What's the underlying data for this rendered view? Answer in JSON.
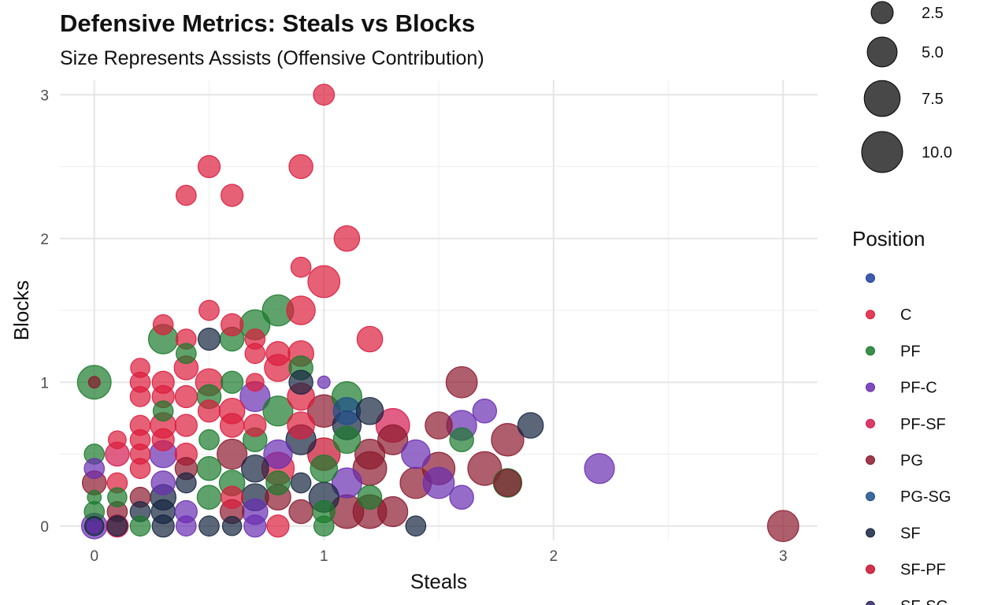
{
  "chart_data": {
    "type": "scatter",
    "title": "Defensive Metrics: Steals vs Blocks",
    "subtitle": "Size Represents Assists (Offensive Contribution)",
    "xlabel": "Steals",
    "ylabel": "Blocks",
    "xlim": [
      -0.15,
      3.15
    ],
    "ylim": [
      -0.1,
      3.1
    ],
    "x_ticks": [
      0,
      1,
      2,
      3
    ],
    "x_tick_labels": [
      "0",
      "1",
      "2",
      "3"
    ],
    "y_ticks": [
      0,
      1,
      2,
      3
    ],
    "y_tick_labels": [
      "0",
      "1",
      "2",
      "3"
    ],
    "grid": true,
    "point_alpha": 0.7,
    "size_legend": {
      "entries": [
        {
          "label": "2.5",
          "value": 2.5
        },
        {
          "label": "5.0",
          "value": 5.0
        },
        {
          "label": "7.5",
          "value": 7.5
        },
        {
          "label": "10.0",
          "value": 10.0
        }
      ]
    },
    "color_legend": {
      "title": "Position",
      "placement": "right",
      "entries": [
        {
          "label": "",
          "color": "#1f3f9e"
        },
        {
          "label": "C",
          "color": "#dc1c3c"
        },
        {
          "label": "PF",
          "color": "#1b7a2c"
        },
        {
          "label": "PF-C",
          "color": "#6a2db2"
        },
        {
          "label": "PF-SF",
          "color": "#d41a50"
        },
        {
          "label": "PG",
          "color": "#8b1a2e"
        },
        {
          "label": "PG-SG",
          "color": "#1f4f8a"
        },
        {
          "label": "SF",
          "color": "#152540"
        },
        {
          "label": "SF-PF",
          "color": "#c8102e"
        },
        {
          "label": "SF-SG",
          "color": "#2b2460"
        }
      ]
    },
    "points": [
      {
        "x": 1.0,
        "y": 3.0,
        "assists": 2.2,
        "position": "C"
      },
      {
        "x": 0.5,
        "y": 2.5,
        "assists": 2.5,
        "position": "C"
      },
      {
        "x": 0.9,
        "y": 2.5,
        "assists": 3.0,
        "position": "C"
      },
      {
        "x": 0.4,
        "y": 2.3,
        "assists": 2.0,
        "position": "C"
      },
      {
        "x": 0.6,
        "y": 2.3,
        "assists": 2.5,
        "position": "C"
      },
      {
        "x": 1.1,
        "y": 2.0,
        "assists": 3.5,
        "position": "C"
      },
      {
        "x": 0.9,
        "y": 1.8,
        "assists": 2.0,
        "position": "C"
      },
      {
        "x": 1.0,
        "y": 1.7,
        "assists": 5.8,
        "position": "C"
      },
      {
        "x": 0.5,
        "y": 1.5,
        "assists": 2.0,
        "position": "C"
      },
      {
        "x": 0.8,
        "y": 1.5,
        "assists": 5.5,
        "position": "PF"
      },
      {
        "x": 0.9,
        "y": 1.5,
        "assists": 4.5,
        "position": "C"
      },
      {
        "x": 0.7,
        "y": 1.4,
        "assists": 5.0,
        "position": "PF"
      },
      {
        "x": 0.3,
        "y": 1.4,
        "assists": 2.0,
        "position": "C"
      },
      {
        "x": 0.6,
        "y": 1.4,
        "assists": 2.5,
        "position": "C"
      },
      {
        "x": 0.3,
        "y": 1.3,
        "assists": 4.8,
        "position": "PF"
      },
      {
        "x": 0.4,
        "y": 1.3,
        "assists": 2.0,
        "position": "C"
      },
      {
        "x": 0.5,
        "y": 1.3,
        "assists": 2.5,
        "position": "SF"
      },
      {
        "x": 0.6,
        "y": 1.3,
        "assists": 3.0,
        "position": "PF"
      },
      {
        "x": 0.7,
        "y": 1.3,
        "assists": 2.0,
        "position": "C"
      },
      {
        "x": 1.2,
        "y": 1.3,
        "assists": 3.5,
        "position": "C"
      },
      {
        "x": 0.4,
        "y": 1.2,
        "assists": 2.0,
        "position": "PF"
      },
      {
        "x": 0.7,
        "y": 1.2,
        "assists": 2.0,
        "position": "C"
      },
      {
        "x": 0.8,
        "y": 1.2,
        "assists": 3.0,
        "position": "C"
      },
      {
        "x": 0.9,
        "y": 1.2,
        "assists": 3.5,
        "position": "C"
      },
      {
        "x": 0.2,
        "y": 1.1,
        "assists": 1.8,
        "position": "C"
      },
      {
        "x": 0.4,
        "y": 1.1,
        "assists": 3.0,
        "position": "C"
      },
      {
        "x": 0.8,
        "y": 1.1,
        "assists": 4.0,
        "position": "C"
      },
      {
        "x": 0.9,
        "y": 1.1,
        "assists": 3.0,
        "position": "PF"
      },
      {
        "x": 0.0,
        "y": 1.0,
        "assists": 6.5,
        "position": "PF"
      },
      {
        "x": 0.0,
        "y": 1.0,
        "assists": 0.5,
        "position": "PG"
      },
      {
        "x": 0.2,
        "y": 1.0,
        "assists": 2.0,
        "position": "C"
      },
      {
        "x": 0.3,
        "y": 1.0,
        "assists": 2.5,
        "position": "C"
      },
      {
        "x": 0.5,
        "y": 1.0,
        "assists": 4.0,
        "position": "C"
      },
      {
        "x": 0.6,
        "y": 1.0,
        "assists": 2.5,
        "position": "PF"
      },
      {
        "x": 0.7,
        "y": 1.0,
        "assists": 1.5,
        "position": "C"
      },
      {
        "x": 0.9,
        "y": 1.0,
        "assists": 3.0,
        "position": "SF"
      },
      {
        "x": 1.0,
        "y": 1.0,
        "assists": 0.6,
        "position": "PF-C"
      },
      {
        "x": 1.6,
        "y": 1.0,
        "assists": 5.5,
        "position": "PG"
      },
      {
        "x": 0.2,
        "y": 0.9,
        "assists": 2.0,
        "position": "C"
      },
      {
        "x": 0.3,
        "y": 0.9,
        "assists": 2.5,
        "position": "C"
      },
      {
        "x": 0.4,
        "y": 0.9,
        "assists": 2.5,
        "position": "C"
      },
      {
        "x": 0.5,
        "y": 0.9,
        "assists": 3.0,
        "position": "PF"
      },
      {
        "x": 0.7,
        "y": 0.9,
        "assists": 5.0,
        "position": "PF-C"
      },
      {
        "x": 0.9,
        "y": 0.9,
        "assists": 4.0,
        "position": "C"
      },
      {
        "x": 1.1,
        "y": 0.9,
        "assists": 5.0,
        "position": "PF"
      },
      {
        "x": 0.3,
        "y": 0.8,
        "assists": 2.0,
        "position": "PF"
      },
      {
        "x": 0.5,
        "y": 0.8,
        "assists": 2.5,
        "position": "C"
      },
      {
        "x": 0.6,
        "y": 0.8,
        "assists": 3.5,
        "position": "C"
      },
      {
        "x": 0.8,
        "y": 0.8,
        "assists": 5.0,
        "position": "PF"
      },
      {
        "x": 1.0,
        "y": 0.8,
        "assists": 6.0,
        "position": "PG"
      },
      {
        "x": 1.1,
        "y": 0.8,
        "assists": 4.0,
        "position": "PG-SG"
      },
      {
        "x": 1.2,
        "y": 0.8,
        "assists": 4.0,
        "position": "SF"
      },
      {
        "x": 1.7,
        "y": 0.8,
        "assists": 3.0,
        "position": "PF-C"
      },
      {
        "x": 0.2,
        "y": 0.7,
        "assists": 2.0,
        "position": "C"
      },
      {
        "x": 0.3,
        "y": 0.7,
        "assists": 3.5,
        "position": "C"
      },
      {
        "x": 0.4,
        "y": 0.7,
        "assists": 2.5,
        "position": "C"
      },
      {
        "x": 0.6,
        "y": 0.7,
        "assists": 3.0,
        "position": "C"
      },
      {
        "x": 0.7,
        "y": 0.7,
        "assists": 2.5,
        "position": "C"
      },
      {
        "x": 0.9,
        "y": 0.7,
        "assists": 4.0,
        "position": "C"
      },
      {
        "x": 1.1,
        "y": 0.7,
        "assists": 4.5,
        "position": "SF"
      },
      {
        "x": 1.3,
        "y": 0.7,
        "assists": 6.5,
        "position": "PF-SF"
      },
      {
        "x": 1.5,
        "y": 0.7,
        "assists": 4.0,
        "position": "PG"
      },
      {
        "x": 1.6,
        "y": 0.7,
        "assists": 5.0,
        "position": "PF-C"
      },
      {
        "x": 1.9,
        "y": 0.7,
        "assists": 3.5,
        "position": "SF"
      },
      {
        "x": 0.1,
        "y": 0.6,
        "assists": 1.5,
        "position": "C"
      },
      {
        "x": 0.2,
        "y": 0.6,
        "assists": 2.0,
        "position": "C"
      },
      {
        "x": 0.3,
        "y": 0.6,
        "assists": 2.5,
        "position": "C"
      },
      {
        "x": 0.5,
        "y": 0.6,
        "assists": 2.0,
        "position": "PF"
      },
      {
        "x": 0.7,
        "y": 0.6,
        "assists": 3.0,
        "position": "PF"
      },
      {
        "x": 0.9,
        "y": 0.6,
        "assists": 5.0,
        "position": "SF"
      },
      {
        "x": 1.1,
        "y": 0.6,
        "assists": 4.0,
        "position": "PF"
      },
      {
        "x": 1.3,
        "y": 0.6,
        "assists": 5.0,
        "position": "PG"
      },
      {
        "x": 1.6,
        "y": 0.6,
        "assists": 3.0,
        "position": "PF"
      },
      {
        "x": 1.8,
        "y": 0.6,
        "assists": 6.0,
        "position": "PG"
      },
      {
        "x": 0.0,
        "y": 0.5,
        "assists": 2.0,
        "position": "PF"
      },
      {
        "x": 0.1,
        "y": 0.5,
        "assists": 3.0,
        "position": "PF-SF"
      },
      {
        "x": 0.2,
        "y": 0.5,
        "assists": 2.0,
        "position": "C"
      },
      {
        "x": 0.3,
        "y": 0.5,
        "assists": 4.0,
        "position": "PF-C"
      },
      {
        "x": 0.4,
        "y": 0.5,
        "assists": 2.5,
        "position": "C"
      },
      {
        "x": 0.6,
        "y": 0.5,
        "assists": 5.0,
        "position": "PG"
      },
      {
        "x": 0.8,
        "y": 0.5,
        "assists": 4.5,
        "position": "PF-C"
      },
      {
        "x": 1.0,
        "y": 0.5,
        "assists": 6.0,
        "position": "SF-PF"
      },
      {
        "x": 1.2,
        "y": 0.5,
        "assists": 5.0,
        "position": "PG"
      },
      {
        "x": 1.4,
        "y": 0.5,
        "assists": 4.5,
        "position": "PF-C"
      },
      {
        "x": 0.0,
        "y": 0.4,
        "assists": 2.0,
        "position": "PF-C"
      },
      {
        "x": 0.2,
        "y": 0.4,
        "assists": 2.0,
        "position": "C"
      },
      {
        "x": 0.4,
        "y": 0.4,
        "assists": 2.5,
        "position": "PG"
      },
      {
        "x": 0.5,
        "y": 0.4,
        "assists": 3.0,
        "position": "PF"
      },
      {
        "x": 0.7,
        "y": 0.4,
        "assists": 4.0,
        "position": "SF"
      },
      {
        "x": 0.8,
        "y": 0.4,
        "assists": 6.0,
        "position": "C"
      },
      {
        "x": 1.0,
        "y": 0.4,
        "assists": 4.0,
        "position": "PF"
      },
      {
        "x": 1.2,
        "y": 0.4,
        "assists": 6.5,
        "position": "PG"
      },
      {
        "x": 1.5,
        "y": 0.4,
        "assists": 6.0,
        "position": "PG"
      },
      {
        "x": 1.7,
        "y": 0.4,
        "assists": 6.5,
        "position": "PG"
      },
      {
        "x": 2.2,
        "y": 0.4,
        "assists": 5.0,
        "position": "PF-C"
      },
      {
        "x": 0.0,
        "y": 0.3,
        "assists": 3.0,
        "position": "PG"
      },
      {
        "x": 0.1,
        "y": 0.3,
        "assists": 2.0,
        "position": "C"
      },
      {
        "x": 0.3,
        "y": 0.3,
        "assists": 3.0,
        "position": "PF-C"
      },
      {
        "x": 0.4,
        "y": 0.3,
        "assists": 2.0,
        "position": "SF"
      },
      {
        "x": 0.6,
        "y": 0.3,
        "assists": 3.5,
        "position": "PF"
      },
      {
        "x": 0.8,
        "y": 0.3,
        "assists": 3.0,
        "position": "PF"
      },
      {
        "x": 0.9,
        "y": 0.3,
        "assists": 2.0,
        "position": "SF"
      },
      {
        "x": 1.1,
        "y": 0.3,
        "assists": 5.0,
        "position": "PF-C"
      },
      {
        "x": 1.4,
        "y": 0.3,
        "assists": 5.5,
        "position": "PG"
      },
      {
        "x": 1.5,
        "y": 0.3,
        "assists": 5.5,
        "position": "PF-C"
      },
      {
        "x": 1.8,
        "y": 0.3,
        "assists": 4.5,
        "position": "PF"
      },
      {
        "x": 1.8,
        "y": 0.3,
        "assists": 4.0,
        "position": "PG"
      },
      {
        "x": 0.0,
        "y": 0.2,
        "assists": 0.8,
        "position": "PF"
      },
      {
        "x": 0.1,
        "y": 0.2,
        "assists": 1.8,
        "position": "PF"
      },
      {
        "x": 0.2,
        "y": 0.2,
        "assists": 2.0,
        "position": "PG"
      },
      {
        "x": 0.3,
        "y": 0.2,
        "assists": 3.5,
        "position": "SF"
      },
      {
        "x": 0.5,
        "y": 0.2,
        "assists": 3.0,
        "position": "PF"
      },
      {
        "x": 0.6,
        "y": 0.2,
        "assists": 2.5,
        "position": "C"
      },
      {
        "x": 0.7,
        "y": 0.2,
        "assists": 4.0,
        "position": "SF"
      },
      {
        "x": 0.8,
        "y": 0.2,
        "assists": 3.5,
        "position": "PG"
      },
      {
        "x": 1.0,
        "y": 0.2,
        "assists": 5.0,
        "position": "SF"
      },
      {
        "x": 1.2,
        "y": 0.2,
        "assists": 3.0,
        "position": "PF"
      },
      {
        "x": 1.6,
        "y": 0.2,
        "assists": 3.0,
        "position": "PF-C"
      },
      {
        "x": 0.0,
        "y": 0.1,
        "assists": 2.0,
        "position": "PF"
      },
      {
        "x": 0.1,
        "y": 0.1,
        "assists": 2.0,
        "position": "PG"
      },
      {
        "x": 0.2,
        "y": 0.1,
        "assists": 2.0,
        "position": "SF"
      },
      {
        "x": 0.3,
        "y": 0.1,
        "assists": 3.0,
        "position": "SF"
      },
      {
        "x": 0.4,
        "y": 0.1,
        "assists": 2.5,
        "position": "PF-C"
      },
      {
        "x": 0.6,
        "y": 0.1,
        "assists": 3.0,
        "position": "PG"
      },
      {
        "x": 0.7,
        "y": 0.1,
        "assists": 3.5,
        "position": "PF-C"
      },
      {
        "x": 0.9,
        "y": 0.1,
        "assists": 3.0,
        "position": "PG"
      },
      {
        "x": 1.0,
        "y": 0.1,
        "assists": 2.5,
        "position": "PF"
      },
      {
        "x": 1.1,
        "y": 0.1,
        "assists": 6.5,
        "position": "PG"
      },
      {
        "x": 1.2,
        "y": 0.1,
        "assists": 6.5,
        "position": "PG"
      },
      {
        "x": 1.3,
        "y": 0.1,
        "assists": 5.0,
        "position": "PG"
      },
      {
        "x": 0.0,
        "y": 0.0,
        "assists": 3.5,
        "position": "PF-C"
      },
      {
        "x": 0.0,
        "y": 0.0,
        "assists": 1.8,
        "position": "SF"
      },
      {
        "x": 0.0,
        "y": 0.0,
        "assists": 0.8,
        "position": "PF-C"
      },
      {
        "x": 0.1,
        "y": 0.0,
        "assists": 2.0,
        "position": "SF"
      },
      {
        "x": 0.1,
        "y": 0.0,
        "assists": 2.5,
        "position": "PF-SF"
      },
      {
        "x": 0.2,
        "y": 0.0,
        "assists": 2.0,
        "position": "PF"
      },
      {
        "x": 0.3,
        "y": 0.0,
        "assists": 2.5,
        "position": "SF"
      },
      {
        "x": 0.4,
        "y": 0.0,
        "assists": 2.0,
        "position": "PF-C"
      },
      {
        "x": 0.5,
        "y": 0.0,
        "assists": 2.0,
        "position": "SF"
      },
      {
        "x": 0.6,
        "y": 0.0,
        "assists": 1.8,
        "position": "SF"
      },
      {
        "x": 0.7,
        "y": 0.0,
        "assists": 2.5,
        "position": "PF-C"
      },
      {
        "x": 0.8,
        "y": 0.0,
        "assists": 2.5,
        "position": "C"
      },
      {
        "x": 1.0,
        "y": 0.0,
        "assists": 2.0,
        "position": "PF"
      },
      {
        "x": 1.4,
        "y": 0.0,
        "assists": 2.0,
        "position": "SF"
      },
      {
        "x": 3.0,
        "y": 0.0,
        "assists": 5.5,
        "position": "PG"
      }
    ]
  }
}
